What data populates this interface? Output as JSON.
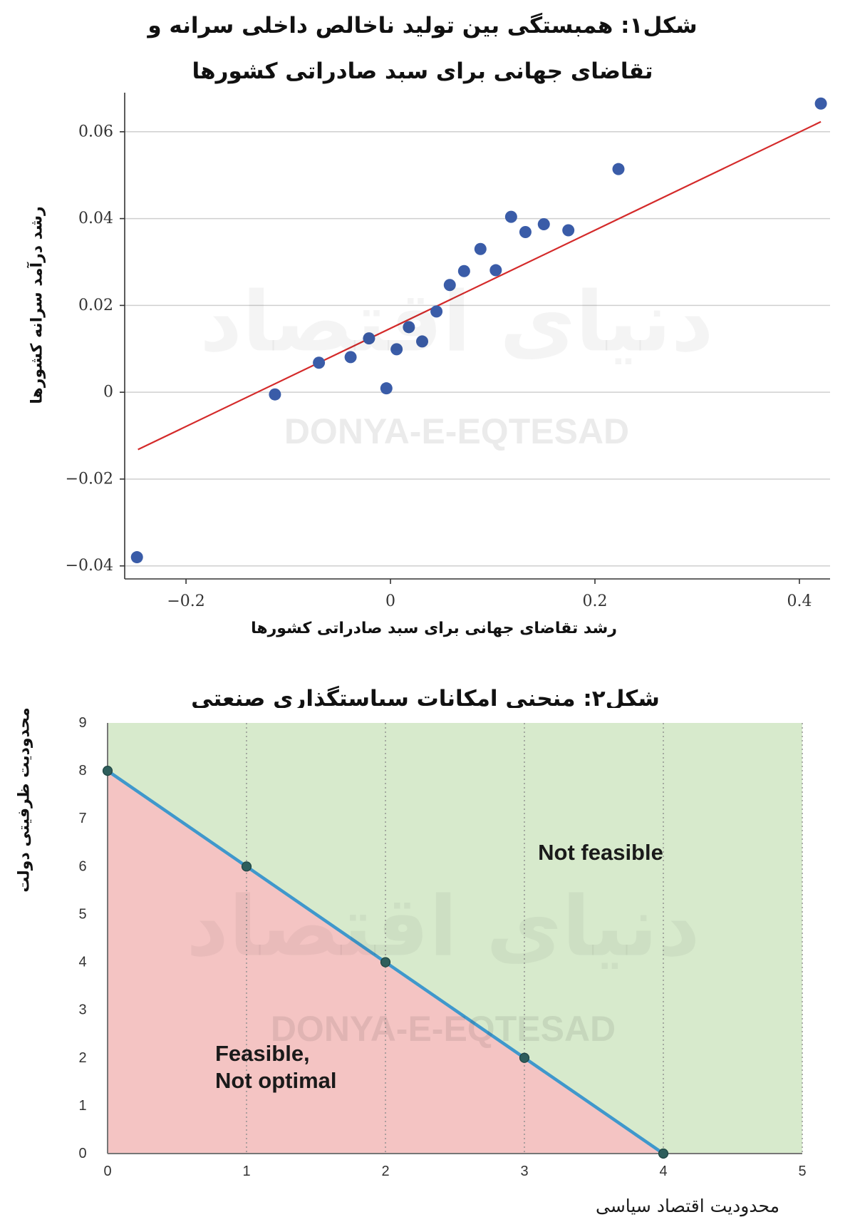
{
  "chart_data": [
    {
      "type": "scatter",
      "title_lines": [
        "شکل۱: همبستگی بین تولید ناخالص داخلی سرانه و",
        "تقاضای جهانی برای سبد صادراتی کشورها"
      ],
      "xlabel": "رشد تقاضای جهانی برای سبد صادراتی کشورها",
      "ylabel": "رشد درآمد سرانه کشورها",
      "xlim": [
        -0.26,
        0.43
      ],
      "ylim": [
        -0.043,
        0.069
      ],
      "x_ticks": [
        {
          "value": -0.2,
          "label": "−0.2"
        },
        {
          "value": 0,
          "label": "0"
        },
        {
          "value": 0.2,
          "label": "0.2"
        },
        {
          "value": 0.4,
          "label": "0.4"
        }
      ],
      "y_ticks": [
        {
          "value": -0.04,
          "label": "−0.04"
        },
        {
          "value": -0.02,
          "label": "−0.02"
        },
        {
          "value": 0,
          "label": "0"
        },
        {
          "value": 0.02,
          "label": "0.02"
        },
        {
          "value": 0.04,
          "label": "0.04"
        },
        {
          "value": 0.06,
          "label": "0.06"
        }
      ],
      "grid": "horizontal",
      "series": [
        {
          "type": "scatter",
          "color": "#3a5ca8",
          "points": [
            {
              "x": -0.248,
              "y": -0.038
            },
            {
              "x": -0.113,
              "y": -0.0005
            },
            {
              "x": -0.07,
              "y": 0.0068
            },
            {
              "x": -0.039,
              "y": 0.0081
            },
            {
              "x": -0.021,
              "y": 0.0124
            },
            {
              "x": -0.004,
              "y": 0.0009
            },
            {
              "x": 0.006,
              "y": 0.0099
            },
            {
              "x": 0.018,
              "y": 0.015
            },
            {
              "x": 0.031,
              "y": 0.0117
            },
            {
              "x": 0.045,
              "y": 0.0186
            },
            {
              "x": 0.058,
              "y": 0.0247
            },
            {
              "x": 0.072,
              "y": 0.0279
            },
            {
              "x": 0.088,
              "y": 0.033
            },
            {
              "x": 0.103,
              "y": 0.0281
            },
            {
              "x": 0.118,
              "y": 0.0404
            },
            {
              "x": 0.132,
              "y": 0.0369
            },
            {
              "x": 0.15,
              "y": 0.0387
            },
            {
              "x": 0.174,
              "y": 0.0373
            },
            {
              "x": 0.223,
              "y": 0.0514
            },
            {
              "x": 0.421,
              "y": 0.0665
            }
          ]
        },
        {
          "type": "line",
          "color": "#d42a2a",
          "points": [
            {
              "x": -0.247,
              "y": -0.0132
            },
            {
              "x": 0.421,
              "y": 0.0623
            }
          ]
        }
      ]
    },
    {
      "type": "line",
      "title": "شکل۲: منحنی امکانات سیاستگذاری صنعتی",
      "xlabel": "محدودیت اقتصاد سیاسی",
      "ylabel": "محدودیت ظرفیتی دولت",
      "xlim": [
        0,
        5
      ],
      "ylim": [
        0,
        9
      ],
      "x_ticks": [
        {
          "value": 0,
          "label": "0"
        },
        {
          "value": 1,
          "label": "1"
        },
        {
          "value": 2,
          "label": "2"
        },
        {
          "value": 3,
          "label": "3"
        },
        {
          "value": 4,
          "label": "4"
        },
        {
          "value": 5,
          "label": "5"
        }
      ],
      "y_ticks": [
        {
          "value": 0,
          "label": "0"
        },
        {
          "value": 1,
          "label": "1"
        },
        {
          "value": 2,
          "label": "2"
        },
        {
          "value": 3,
          "label": "3"
        },
        {
          "value": 4,
          "label": "4"
        },
        {
          "value": 5,
          "label": "5"
        },
        {
          "value": 6,
          "label": "6"
        },
        {
          "value": 7,
          "label": "7"
        },
        {
          "value": 8,
          "label": "8"
        },
        {
          "value": 9,
          "label": "9"
        }
      ],
      "grid": "vertical",
      "series": [
        {
          "type": "line",
          "color": "#3f98cc",
          "marker_color": "#2e5e5c",
          "points": [
            {
              "x": 0,
              "y": 8
            },
            {
              "x": 1,
              "y": 6
            },
            {
              "x": 2,
              "y": 4
            },
            {
              "x": 3,
              "y": 2
            },
            {
              "x": 4,
              "y": 0
            }
          ]
        }
      ],
      "regions": {
        "below_line": {
          "label_lines": [
            "Feasible,",
            "Not optimal"
          ],
          "color": "#f4c4c3"
        },
        "above_line": {
          "label": "Not feasible",
          "color": "#d7eacc"
        }
      }
    }
  ],
  "watermark": {
    "logo_text": "دنیای اقتصاد",
    "latin_text": "DONYA-E-EQTESAD"
  }
}
